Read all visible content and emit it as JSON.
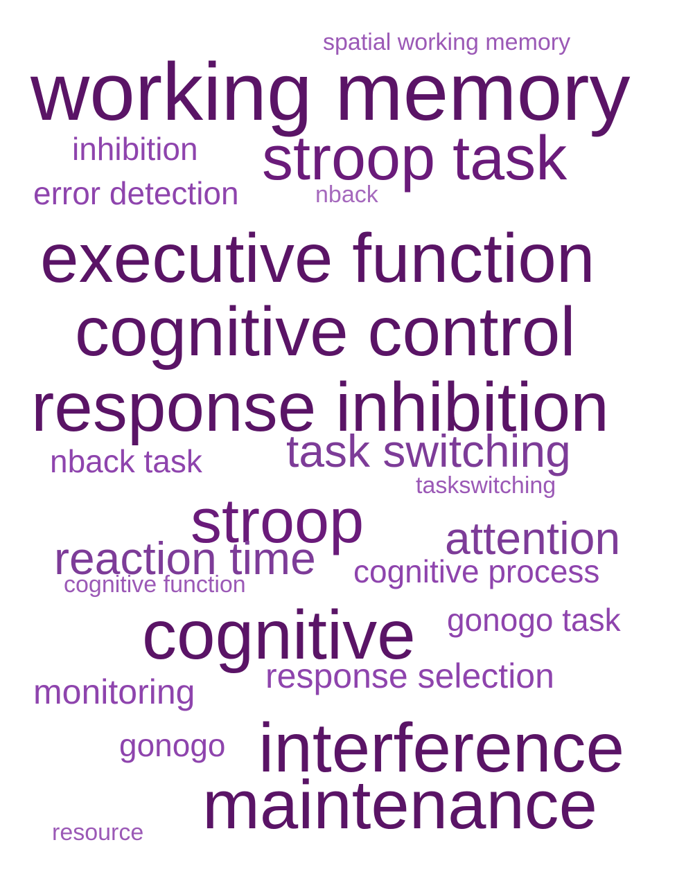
{
  "words": [
    {
      "text": "spatial working memory",
      "color": "#9b59b6"
    },
    {
      "text": "working memory",
      "color": "#5a1466"
    },
    {
      "text": "inhibition",
      "color": "#8e44ad"
    },
    {
      "text": "stroop task",
      "color": "#6a1b7a"
    },
    {
      "text": "error detection",
      "color": "#8e44ad"
    },
    {
      "text": "nback",
      "color": "#a569bd"
    },
    {
      "text": "executive function",
      "color": "#5a1466"
    },
    {
      "text": "cognitive control",
      "color": "#5a1466"
    },
    {
      "text": "response inhibition",
      "color": "#5a1466"
    },
    {
      "text": "task switching",
      "color": "#7d3c98"
    },
    {
      "text": "nback task",
      "color": "#8e44ad"
    },
    {
      "text": "taskswitching",
      "color": "#9b59b6"
    },
    {
      "text": "stroop",
      "color": "#6a1b7a"
    },
    {
      "text": "attention",
      "color": "#7d3c98"
    },
    {
      "text": "reaction time",
      "color": "#7d3c98"
    },
    {
      "text": "cognitive process",
      "color": "#8e44ad"
    },
    {
      "text": "cognitive function",
      "color": "#9b59b6"
    },
    {
      "text": "cognitive",
      "color": "#5a1466"
    },
    {
      "text": "gonogo task",
      "color": "#8e44ad"
    },
    {
      "text": "response selection",
      "color": "#8e44ad"
    },
    {
      "text": "monitoring",
      "color": "#8e44ad"
    },
    {
      "text": "gonogo",
      "color": "#8e44ad"
    },
    {
      "text": "interference",
      "color": "#5a1466"
    },
    {
      "text": "maintenance",
      "color": "#5a1466"
    },
    {
      "text": "resource",
      "color": "#9b59b6"
    }
  ]
}
